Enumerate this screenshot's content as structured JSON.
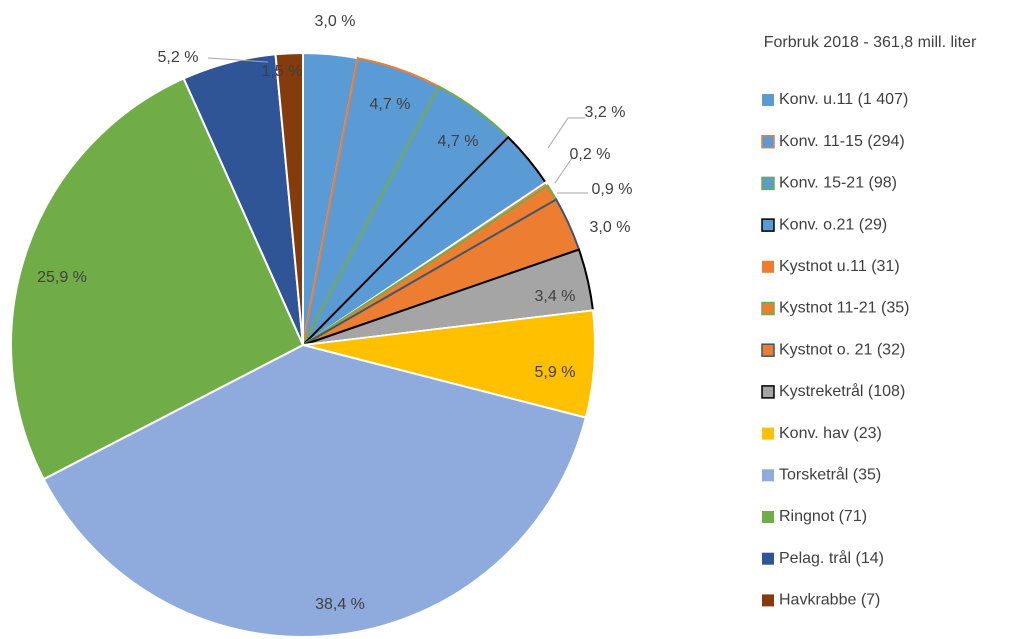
{
  "chart_data": {
    "type": "pie",
    "legend_title": "Forbruk 2018 - 361,8 mill. liter",
    "categories": [
      "Konv. u.11 (1 407)",
      "Konv. 11-15 (294)",
      "Konv. 15-21 (98)",
      "Konv. o.21 (29)",
      "Kystnot u.11 (31)",
      "Kystnot 11-21 (35)",
      "Kystnot o. 21 (32)",
      "Kystreketrål (108)",
      "Konv. hav (23)",
      "Torsketrål (35)",
      "Ringnot (71)",
      "Pelag. trål (14)",
      "Havkrabbe (7)"
    ],
    "values": [
      3.0,
      4.7,
      4.7,
      3.2,
      0.2,
      0.9,
      3.0,
      3.4,
      5.9,
      38.4,
      25.9,
      5.2,
      1.5
    ],
    "value_labels": [
      "3,0 %",
      "4,7 %",
      "4,7 %",
      "3,2 %",
      "0,2 %",
      "0,9 %",
      "3,0 %",
      "3,4 %",
      "5,9 %",
      "38,4 %",
      "25,9 %",
      "5,2 %",
      "1,5 %"
    ],
    "colors": [
      "#5b9bd5",
      "#5b9bd5",
      "#5b9bd5",
      "#5b9bd5",
      "#ed7d31",
      "#ed7d31",
      "#ed7d31",
      "#a5a5a5",
      "#ffc000",
      "#8faadc",
      "#70ad47",
      "#2f5597",
      "#843c0c"
    ],
    "edgecolors": [
      "#ffffff",
      "#ed7d31",
      "#70ad47",
      "#000000",
      "#ffffff",
      "#70ad47",
      "#44546a",
      "#000000",
      "#ffffff",
      "#ffffff",
      "#ffffff",
      "#ffffff",
      "#ffffff"
    ],
    "legend": "right"
  }
}
